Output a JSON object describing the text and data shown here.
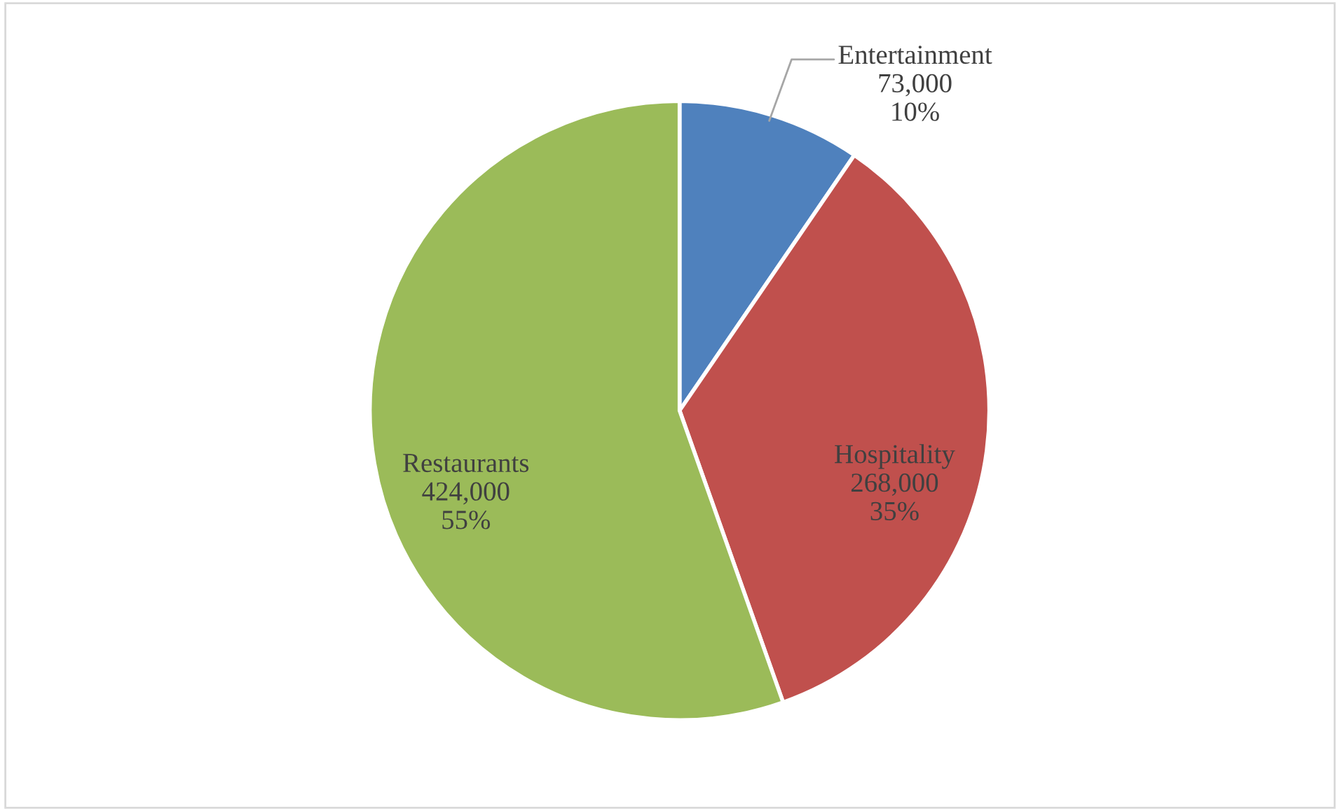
{
  "chart_data": {
    "type": "pie",
    "categories": [
      "Entertainment",
      "Hospitality",
      "Restaurants"
    ],
    "values": [
      73000,
      268000,
      424000
    ],
    "colors": [
      "#4f81bd",
      "#c0504d",
      "#9bbb59"
    ],
    "value_labels": [
      "73,000\n10%",
      "268,000\n35%",
      "424,000\n55%"
    ],
    "legend": false
  }
}
